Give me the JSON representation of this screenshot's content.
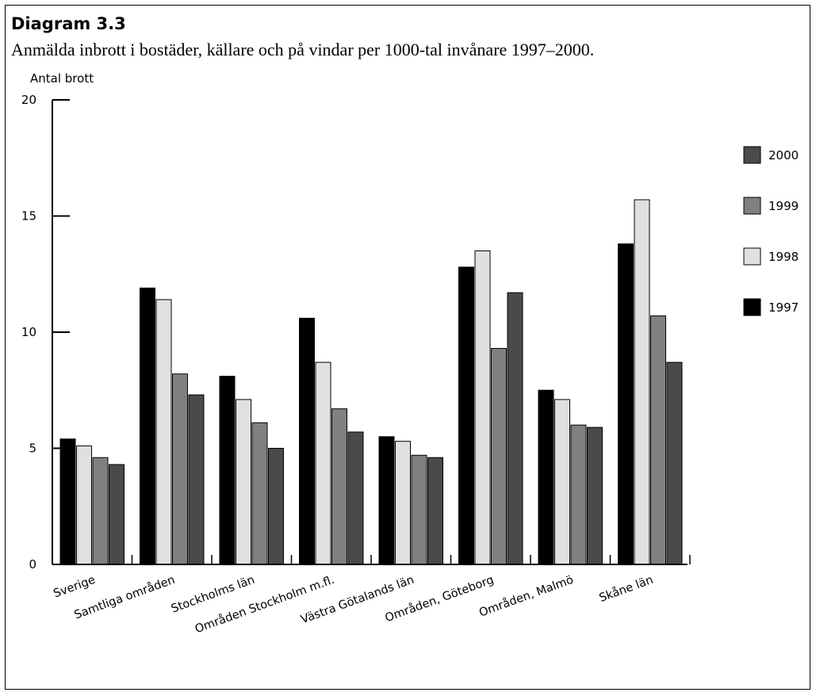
{
  "heading": "Diagram 3.3",
  "chart_data": {
    "type": "bar",
    "title": "Anmälda inbrott i bostäder, källare och på vindar per 1000-tal invånare 1997–2000.",
    "ylabel": "Antal brott",
    "xlabel": "",
    "ylim": [
      0,
      20
    ],
    "yticks": [
      0,
      5,
      10,
      15,
      20
    ],
    "grid": false,
    "legend_position": "right",
    "categories": [
      "Sverige",
      "Samtliga områden",
      "Stockholms län",
      "Områden Stockholm m.fl.",
      "Västra Götalands län",
      "Områden, Göteborg",
      "Områden, Malmö",
      "Skåne län"
    ],
    "series": [
      {
        "name": "1997",
        "color": "#000000",
        "values": [
          5.4,
          11.9,
          8.1,
          10.6,
          5.5,
          12.8,
          7.5,
          13.8
        ]
      },
      {
        "name": "1998",
        "color": "#e0e0e0",
        "values": [
          5.1,
          11.4,
          7.1,
          8.7,
          5.3,
          13.5,
          7.1,
          15.7
        ]
      },
      {
        "name": "1999",
        "color": "#808080",
        "values": [
          4.6,
          8.2,
          6.1,
          6.7,
          4.7,
          9.3,
          6.0,
          10.7
        ]
      },
      {
        "name": "2000",
        "color": "#4a4a4a",
        "values": [
          4.3,
          7.3,
          5.0,
          5.7,
          4.6,
          11.7,
          5.9,
          8.7
        ]
      }
    ],
    "legend_order": [
      "2000",
      "1999",
      "1998",
      "1997"
    ]
  }
}
